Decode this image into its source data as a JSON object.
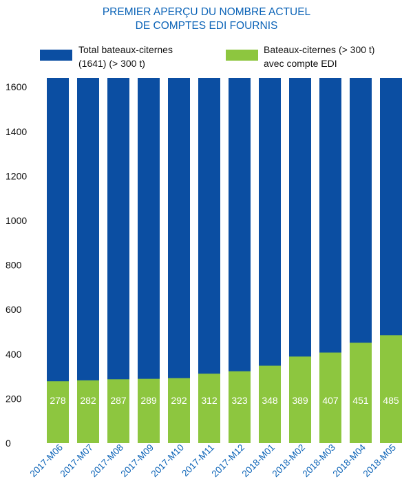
{
  "title": {
    "line1": "PREMIER APERÇU DU NOMBRE ACTUEL",
    "line2": "DE COMPTES EDI FOURNIS"
  },
  "legend": {
    "total": {
      "line1": "Total bateaux-citernes",
      "line2": "(1641) (> 300 t)"
    },
    "edi": {
      "line1": "Bateaux-citernes (> 300 t)",
      "line2": "avec compte EDI"
    }
  },
  "colors": {
    "total": "#0b4ea2",
    "edi": "#8dc63f",
    "title": "#0b63b7"
  },
  "chart_data": {
    "type": "bar",
    "categories": [
      "2017-M06",
      "2017-M07",
      "2017-M08",
      "2017-M09",
      "2017-M10",
      "2017-M11",
      "2017-M12",
      "2018-M01",
      "2018-M02",
      "2018-M03",
      "2018-M04",
      "2018-M05"
    ],
    "series": [
      {
        "name": "Total bateaux-citernes (1641) (> 300 t)",
        "values": [
          1641,
          1641,
          1641,
          1641,
          1641,
          1641,
          1641,
          1641,
          1641,
          1641,
          1641,
          1641
        ]
      },
      {
        "name": "Bateaux-citernes (> 300 t) avec compte EDI",
        "values": [
          278,
          282,
          287,
          289,
          292,
          312,
          323,
          348,
          389,
          407,
          451,
          485
        ]
      }
    ],
    "ylim": [
      0,
      1641
    ],
    "yticks": [
      0,
      200,
      400,
      600,
      800,
      1000,
      1200,
      1400,
      1600
    ],
    "grid": false,
    "legend_position": "top"
  }
}
